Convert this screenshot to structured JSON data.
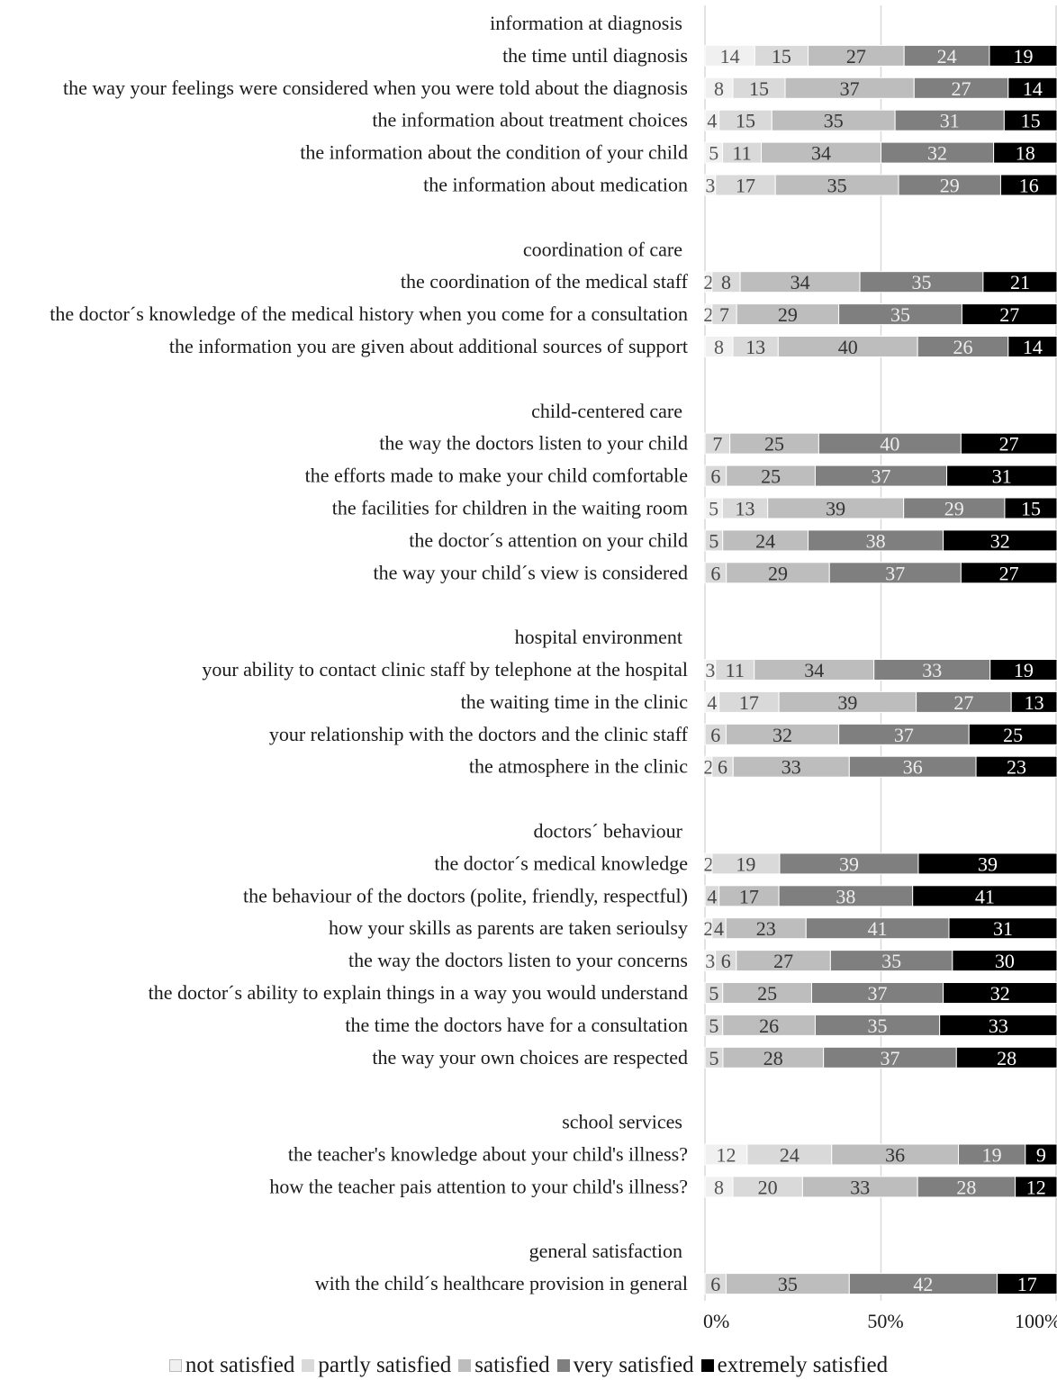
{
  "chart_data": {
    "type": "bar",
    "orientation": "horizontal",
    "stacked": true,
    "percent": true,
    "xlim": [
      0,
      100
    ],
    "grid": true,
    "legend_position": "bottom",
    "x_ticks": [
      "0%",
      "50%",
      "100%"
    ],
    "series": [
      {
        "name": "not satisfied",
        "color": "#f0f0f0",
        "text_color": "#555555"
      },
      {
        "name": "partly satisfied",
        "color": "#d9d9d9",
        "text_color": "#444444"
      },
      {
        "name": "satisfied",
        "color": "#bdbdbd",
        "text_color": "#333333"
      },
      {
        "name": "very satisfied",
        "color": "#7f7f7f",
        "text_color": "#eeeeee"
      },
      {
        "name": "extremely satisfied",
        "color": "#000000",
        "text_color": "#ffffff"
      }
    ],
    "groups": [
      {
        "title": "information at diagnosis",
        "items": [
          {
            "label": "the time until diagnosis",
            "values": [
              14,
              15,
              27,
              24,
              19
            ]
          },
          {
            "label": "the way your feelings were considered when you were told about the diagnosis",
            "values": [
              8,
              15,
              37,
              27,
              14
            ]
          },
          {
            "label": "the information about treatment choices",
            "values": [
              4,
              15,
              35,
              31,
              15
            ]
          },
          {
            "label": "the information about the condition of your child",
            "values": [
              5,
              11,
              34,
              32,
              18
            ]
          },
          {
            "label": "the information about medication",
            "values": [
              3,
              17,
              35,
              29,
              16
            ]
          }
        ]
      },
      {
        "title": "coordination of care",
        "items": [
          {
            "label": "the coordination of the medical staff",
            "values": [
              2,
              8,
              34,
              35,
              21
            ]
          },
          {
            "label": "the doctor´s knowledge of the medical history when you come for a consultation",
            "values": [
              2,
              7,
              29,
              35,
              27
            ]
          },
          {
            "label": "the information you are given about additional sources of support",
            "values": [
              8,
              13,
              40,
              26,
              14
            ]
          }
        ]
      },
      {
        "title": "child-centered care",
        "items": [
          {
            "label": "the way the doctors listen to your child",
            "values": [
              0,
              7,
              25,
              40,
              27
            ]
          },
          {
            "label": "the efforts made to make your child comfortable",
            "values": [
              0,
              6,
              25,
              37,
              31
            ]
          },
          {
            "label": "the facilities for children in the waiting room",
            "values": [
              5,
              13,
              39,
              29,
              15
            ]
          },
          {
            "label": "the doctor´s attention on your child",
            "values": [
              0,
              5,
              24,
              38,
              32
            ]
          },
          {
            "label": "the way your child´s view is considered",
            "values": [
              0,
              6,
              29,
              37,
              27
            ]
          }
        ]
      },
      {
        "title": "hospital environment",
        "items": [
          {
            "label": "your ability to contact clinic staff by telephone at the hospital",
            "values": [
              3,
              11,
              34,
              33,
              19
            ]
          },
          {
            "label": "the waiting time in the clinic",
            "values": [
              4,
              17,
              39,
              27,
              13
            ]
          },
          {
            "label": "your relationship with the doctors and the clinic staff",
            "values": [
              0,
              6,
              32,
              37,
              25
            ]
          },
          {
            "label": "the atmosphere in the clinic",
            "values": [
              2,
              6,
              33,
              36,
              23
            ]
          }
        ]
      },
      {
        "title": "doctors´ behaviour",
        "items": [
          {
            "label": "the doctor´s medical knowledge",
            "values": [
              2,
              19,
              0,
              39,
              39
            ]
          },
          {
            "label": "the behaviour of the doctors (polite, friendly, respectful)",
            "values": [
              0,
              4,
              17,
              38,
              41
            ]
          },
          {
            "label": "how your skills as parents are taken serioulsy",
            "values": [
              2,
              4,
              23,
              41,
              31
            ]
          },
          {
            "label": "the way the doctors listen to your concerns",
            "values": [
              3,
              6,
              27,
              35,
              30
            ]
          },
          {
            "label": "the doctor´s ability to explain things in a way you would understand",
            "values": [
              0,
              5,
              25,
              37,
              32
            ]
          },
          {
            "label": "the time the doctors have for a consultation",
            "values": [
              0,
              5,
              26,
              35,
              33
            ]
          },
          {
            "label": "the way your own choices are respected",
            "values": [
              0,
              5,
              28,
              37,
              28
            ]
          }
        ]
      },
      {
        "title": "school services",
        "items": [
          {
            "label": "the teacher's knowledge about your child's illness?",
            "values": [
              12,
              24,
              36,
              19,
              9
            ]
          },
          {
            "label": "how the teacher pais attention to your child's illness?",
            "values": [
              8,
              20,
              33,
              28,
              12
            ]
          }
        ]
      },
      {
        "title": "general satisfaction",
        "items": [
          {
            "label": "with the child´s healthcare provision in general",
            "values": [
              0,
              6,
              35,
              42,
              17
            ]
          }
        ]
      }
    ]
  }
}
